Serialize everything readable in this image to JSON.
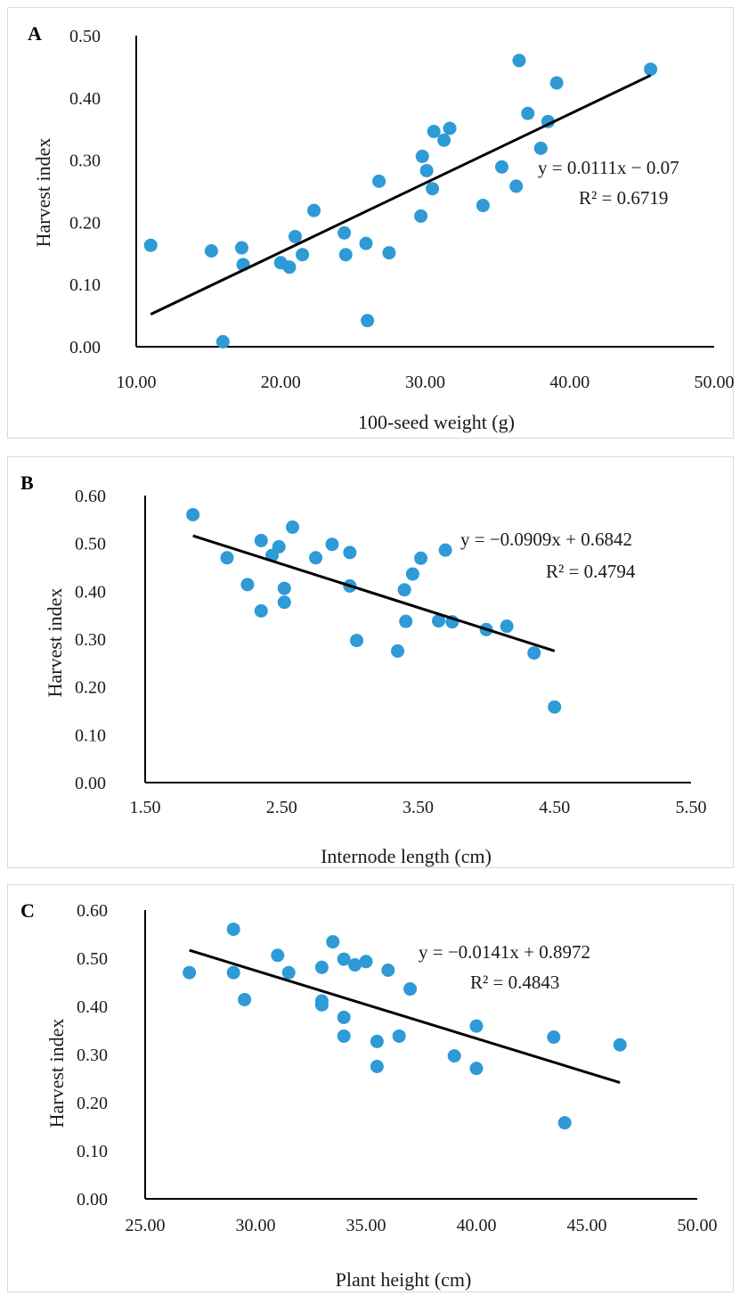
{
  "chart_data": [
    {
      "type": "scatter",
      "panel": "A",
      "xlabel": "100-seed weight (g)",
      "ylabel": "Harvest index",
      "xlim": [
        10,
        50
      ],
      "ylim": [
        0,
        0.5
      ],
      "x_ticks": [
        "10.00",
        "20.00",
        "30.00",
        "40.00",
        "50.00"
      ],
      "y_ticks": [
        "0.00",
        "0.10",
        "0.20",
        "0.30",
        "0.40",
        "0.50"
      ],
      "grid": false,
      "marker_color": "#2E9AD6",
      "points": [
        {
          "x": 11.0,
          "y": 0.163
        },
        {
          "x": 15.2,
          "y": 0.154
        },
        {
          "x": 16.0,
          "y": 0.008
        },
        {
          "x": 17.3,
          "y": 0.159
        },
        {
          "x": 17.4,
          "y": 0.132
        },
        {
          "x": 20.0,
          "y": 0.135
        },
        {
          "x": 20.6,
          "y": 0.128
        },
        {
          "x": 21.0,
          "y": 0.177
        },
        {
          "x": 21.5,
          "y": 0.148
        },
        {
          "x": 22.3,
          "y": 0.219
        },
        {
          "x": 24.4,
          "y": 0.183
        },
        {
          "x": 24.5,
          "y": 0.148
        },
        {
          "x": 25.9,
          "y": 0.166
        },
        {
          "x": 26.0,
          "y": 0.042
        },
        {
          "x": 26.8,
          "y": 0.266
        },
        {
          "x": 27.5,
          "y": 0.151
        },
        {
          "x": 29.7,
          "y": 0.21
        },
        {
          "x": 29.8,
          "y": 0.306
        },
        {
          "x": 30.1,
          "y": 0.283
        },
        {
          "x": 30.5,
          "y": 0.254
        },
        {
          "x": 30.6,
          "y": 0.346
        },
        {
          "x": 31.3,
          "y": 0.332
        },
        {
          "x": 31.7,
          "y": 0.351
        },
        {
          "x": 34.0,
          "y": 0.227
        },
        {
          "x": 35.3,
          "y": 0.289
        },
        {
          "x": 36.3,
          "y": 0.258
        },
        {
          "x": 36.5,
          "y": 0.46
        },
        {
          "x": 37.1,
          "y": 0.375
        },
        {
          "x": 38.0,
          "y": 0.319
        },
        {
          "x": 38.5,
          "y": 0.362
        },
        {
          "x": 39.1,
          "y": 0.424
        },
        {
          "x": 45.6,
          "y": 0.446
        }
      ],
      "trendline": {
        "slope": 0.0111,
        "intercept": -0.07,
        "x_range": [
          11.0,
          45.6
        ]
      },
      "equation": "y = 0.0111x − 0.07",
      "r2": "R² = 0.6719"
    },
    {
      "type": "scatter",
      "panel": "B",
      "xlabel": "Internode length (cm)",
      "ylabel": "Harvest index",
      "xlim": [
        1.5,
        5.5
      ],
      "ylim": [
        0,
        0.6
      ],
      "x_ticks": [
        "1.50",
        "2.50",
        "3.50",
        "4.50",
        "5.50"
      ],
      "y_ticks": [
        "0.00",
        "0.10",
        "0.20",
        "0.30",
        "0.40",
        "0.50",
        "0.60"
      ],
      "grid": false,
      "marker_color": "#2E9AD6",
      "points": [
        {
          "x": 1.85,
          "y": 0.56
        },
        {
          "x": 2.1,
          "y": 0.47
        },
        {
          "x": 2.25,
          "y": 0.414
        },
        {
          "x": 2.35,
          "y": 0.506
        },
        {
          "x": 2.35,
          "y": 0.359
        },
        {
          "x": 2.43,
          "y": 0.475
        },
        {
          "x": 2.48,
          "y": 0.493
        },
        {
          "x": 2.52,
          "y": 0.406
        },
        {
          "x": 2.52,
          "y": 0.377
        },
        {
          "x": 2.58,
          "y": 0.534
        },
        {
          "x": 2.75,
          "y": 0.47
        },
        {
          "x": 2.87,
          "y": 0.498
        },
        {
          "x": 3.0,
          "y": 0.481
        },
        {
          "x": 3.0,
          "y": 0.411
        },
        {
          "x": 3.05,
          "y": 0.297
        },
        {
          "x": 3.35,
          "y": 0.275
        },
        {
          "x": 3.4,
          "y": 0.403
        },
        {
          "x": 3.41,
          "y": 0.337
        },
        {
          "x": 3.46,
          "y": 0.436
        },
        {
          "x": 3.52,
          "y": 0.469
        },
        {
          "x": 3.65,
          "y": 0.338
        },
        {
          "x": 3.7,
          "y": 0.486
        },
        {
          "x": 3.75,
          "y": 0.336
        },
        {
          "x": 4.0,
          "y": 0.32
        },
        {
          "x": 4.15,
          "y": 0.327
        },
        {
          "x": 4.35,
          "y": 0.271
        },
        {
          "x": 4.5,
          "y": 0.158
        }
      ],
      "trendline": {
        "slope": -0.0909,
        "intercept": 0.6842,
        "x_range": [
          1.85,
          4.5
        ]
      },
      "equation": "y =  −0.0909x + 0.6842",
      "r2": "R² = 0.4794"
    },
    {
      "type": "scatter",
      "panel": "C",
      "xlabel": "Plant height (cm)",
      "ylabel": "Harvest index",
      "xlim": [
        25,
        50
      ],
      "ylim": [
        0,
        0.6
      ],
      "x_ticks": [
        "25.00",
        "30.00",
        "35.00",
        "40.00",
        "45.00",
        "50.00"
      ],
      "y_ticks": [
        "0.00",
        "0.10",
        "0.20",
        "0.30",
        "0.40",
        "0.50",
        "0.60"
      ],
      "grid": false,
      "marker_color": "#2E9AD6",
      "points": [
        {
          "x": 27.0,
          "y": 0.47
        },
        {
          "x": 29.0,
          "y": 0.56
        },
        {
          "x": 29.0,
          "y": 0.47
        },
        {
          "x": 29.5,
          "y": 0.414
        },
        {
          "x": 31.0,
          "y": 0.506
        },
        {
          "x": 31.5,
          "y": 0.47
        },
        {
          "x": 33.0,
          "y": 0.481
        },
        {
          "x": 33.0,
          "y": 0.411
        },
        {
          "x": 33.0,
          "y": 0.403
        },
        {
          "x": 33.5,
          "y": 0.534
        },
        {
          "x": 34.0,
          "y": 0.498
        },
        {
          "x": 34.0,
          "y": 0.377
        },
        {
          "x": 34.0,
          "y": 0.338
        },
        {
          "x": 34.5,
          "y": 0.486
        },
        {
          "x": 35.0,
          "y": 0.493
        },
        {
          "x": 35.5,
          "y": 0.327
        },
        {
          "x": 35.5,
          "y": 0.275
        },
        {
          "x": 36.0,
          "y": 0.475
        },
        {
          "x": 36.5,
          "y": 0.338
        },
        {
          "x": 37.0,
          "y": 0.436
        },
        {
          "x": 39.0,
          "y": 0.297
        },
        {
          "x": 40.0,
          "y": 0.359
        },
        {
          "x": 40.0,
          "y": 0.271
        },
        {
          "x": 43.5,
          "y": 0.336
        },
        {
          "x": 44.0,
          "y": 0.158
        },
        {
          "x": 46.5,
          "y": 0.32
        }
      ],
      "trendline": {
        "slope": -0.0141,
        "intercept": 0.8972,
        "x_range": [
          27.0,
          46.5
        ]
      },
      "equation": "y = −0.0141x + 0.8972",
      "r2": "R² = 0.4843"
    }
  ]
}
